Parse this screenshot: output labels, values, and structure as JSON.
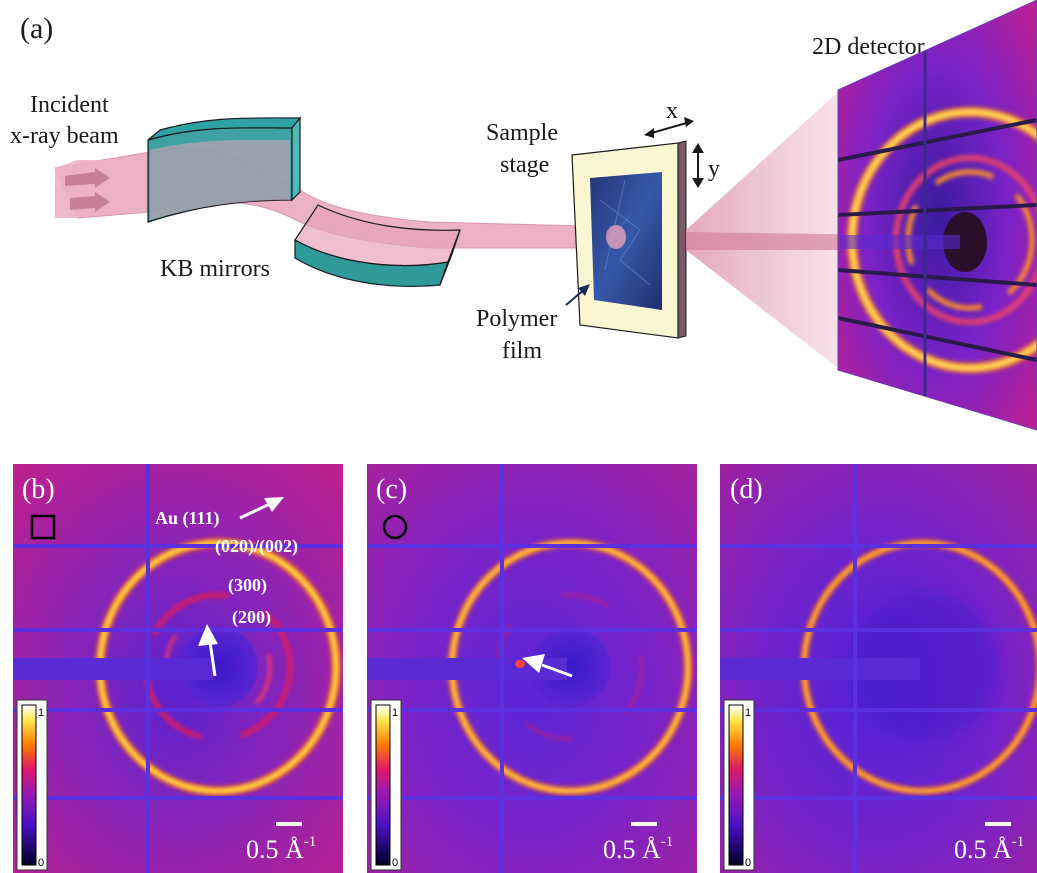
{
  "figure": {
    "panel_a": {
      "label": "(a)",
      "incident_beam": [
        "Incident",
        "x-ray beam"
      ],
      "kb_mirrors": "KB mirrors",
      "sample_stage": [
        "Sample",
        "stage"
      ],
      "axis_x": "x",
      "axis_y": "y",
      "polymer_film": [
        "Polymer",
        "film"
      ],
      "detector": "2D detector"
    },
    "panels": [
      {
        "label": "(b)",
        "marker": "square",
        "scale_value": "0.5 Å",
        "scale_exp": "-1",
        "reflections": [
          "Au (111)",
          "(020)/(002)",
          "(300)",
          "(200)"
        ],
        "colorbar": {
          "max": "1",
          "min": "0"
        }
      },
      {
        "label": "(c)",
        "marker": "circle",
        "scale_value": "0.5 Å",
        "scale_exp": "-1",
        "reflections": [],
        "colorbar": {
          "max": "1",
          "min": "0"
        }
      },
      {
        "label": "(d)",
        "marker": "none",
        "scale_value": "0.5 Å",
        "scale_exp": "-1",
        "reflections": [],
        "colorbar": {
          "max": "1",
          "min": "0"
        }
      }
    ],
    "colormap": {
      "background": "#7a22c8",
      "low": "#000030",
      "mid": "#6a1fd4",
      "magenta": "#d01880",
      "orange": "#ff6a00",
      "yellow": "#ffe84a",
      "high": "#ffffff"
    }
  }
}
